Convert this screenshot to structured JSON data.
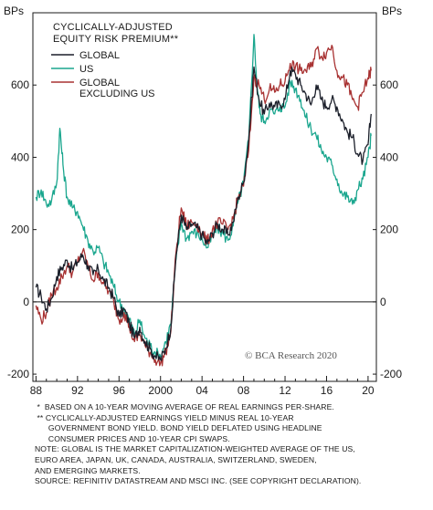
{
  "chart_data": {
    "type": "line",
    "title": "CYCLICALLY-ADJUSTED EQUITY RISK PREMIUM**",
    "title_lines": [
      "CYCLICALLY-ADJUSTED",
      "EQUITY RISK PREMIUM**"
    ],
    "ylabel_left": "BPs",
    "ylabel_right": "BPs",
    "ylim": [
      -220,
      800
    ],
    "yticks": [
      -200,
      0,
      200,
      400,
      600
    ],
    "ytick_labels": [
      "-200",
      "0",
      "200",
      "400",
      "600"
    ],
    "xlim": [
      1987.7,
      2020.8
    ],
    "xticks": [
      1988,
      1992,
      1996,
      2000,
      2004,
      2008,
      2012,
      2016,
      2020
    ],
    "xtick_labels": [
      "88",
      "92",
      "96",
      "2000",
      "04",
      "08",
      "12",
      "16",
      "20"
    ],
    "legend_placement": "top-left",
    "credit": "© BCA Research 2020",
    "series": [
      {
        "name": "GLOBAL",
        "color": "#1b1f2a",
        "x": [
          1988.0,
          1988.5,
          1989.0,
          1989.5,
          1990.0,
          1990.5,
          1991.0,
          1991.5,
          1992.0,
          1992.5,
          1993.0,
          1993.5,
          1994.0,
          1994.5,
          1995.0,
          1995.5,
          1996.0,
          1996.5,
          1997.0,
          1997.5,
          1998.0,
          1998.5,
          1999.0,
          1999.5,
          2000.0,
          2000.5,
          2001.0,
          2001.5,
          2002.0,
          2002.5,
          2003.0,
          2003.5,
          2004.0,
          2004.5,
          2005.0,
          2005.5,
          2006.0,
          2006.5,
          2007.0,
          2007.5,
          2008.0,
          2008.5,
          2009.0,
          2009.5,
          2010.0,
          2010.5,
          2011.0,
          2011.5,
          2012.0,
          2012.5,
          2013.0,
          2013.5,
          2014.0,
          2014.5,
          2015.0,
          2015.5,
          2016.0,
          2016.5,
          2017.0,
          2017.5,
          2018.0,
          2018.5,
          2019.0,
          2019.5,
          2020.0,
          2020.3
        ],
        "values": [
          40,
          15,
          -20,
          10,
          70,
          95,
          115,
          90,
          110,
          130,
          100,
          75,
          90,
          60,
          40,
          10,
          -40,
          -20,
          -60,
          -100,
          -70,
          -110,
          -130,
          -150,
          -160,
          -130,
          -70,
          130,
          240,
          200,
          215,
          205,
          185,
          160,
          190,
          215,
          200,
          185,
          220,
          290,
          330,
          450,
          650,
          560,
          520,
          550,
          540,
          545,
          560,
          640,
          630,
          600,
          575,
          545,
          600,
          560,
          540,
          560,
          540,
          505,
          470,
          455,
          410,
          390,
          435,
          520
        ]
      },
      {
        "name": "US",
        "color": "#1aa68e",
        "x": [
          1988.0,
          1988.5,
          1989.0,
          1989.5,
          1990.0,
          1990.3,
          1990.6,
          1991.0,
          1991.5,
          1992.0,
          1992.5,
          1993.0,
          1993.5,
          1994.0,
          1994.5,
          1995.0,
          1995.5,
          1996.0,
          1996.5,
          1997.0,
          1997.5,
          1998.0,
          1998.5,
          1999.0,
          1999.5,
          2000.0,
          2000.5,
          2001.0,
          2001.5,
          2002.0,
          2002.5,
          2003.0,
          2003.5,
          2004.0,
          2004.5,
          2005.0,
          2005.5,
          2006.0,
          2006.5,
          2007.0,
          2007.5,
          2008.0,
          2008.5,
          2009.0,
          2009.3,
          2009.6,
          2010.0,
          2010.5,
          2011.0,
          2011.5,
          2012.0,
          2012.5,
          2013.0,
          2013.5,
          2014.0,
          2014.5,
          2015.0,
          2015.5,
          2016.0,
          2016.5,
          2017.0,
          2017.5,
          2018.0,
          2018.5,
          2019.0,
          2019.5,
          2020.0,
          2020.3
        ],
        "values": [
          290,
          310,
          270,
          280,
          330,
          480,
          380,
          290,
          260,
          250,
          210,
          170,
          140,
          150,
          110,
          80,
          40,
          0,
          -20,
          -50,
          -90,
          -50,
          -100,
          -120,
          -140,
          -150,
          -110,
          -60,
          120,
          220,
          175,
          195,
          190,
          175,
          150,
          180,
          205,
          190,
          170,
          210,
          280,
          330,
          450,
          740,
          600,
          520,
          500,
          530,
          520,
          540,
          540,
          610,
          590,
          560,
          510,
          480,
          460,
          420,
          400,
          380,
          340,
          300,
          290,
          270,
          310,
          340,
          400,
          460
        ]
      },
      {
        "name": "GLOBAL EXCLUDING US",
        "color": "#a83232",
        "x": [
          1988.0,
          1988.5,
          1989.0,
          1989.5,
          1990.0,
          1990.5,
          1991.0,
          1991.5,
          1992.0,
          1992.5,
          1993.0,
          1993.5,
          1994.0,
          1994.5,
          1995.0,
          1995.5,
          1996.0,
          1996.5,
          1997.0,
          1997.5,
          1998.0,
          1998.5,
          1999.0,
          1999.5,
          2000.0,
          2000.5,
          2001.0,
          2001.5,
          2002.0,
          2002.5,
          2003.0,
          2003.5,
          2004.0,
          2004.5,
          2005.0,
          2005.5,
          2006.0,
          2006.5,
          2007.0,
          2007.5,
          2008.0,
          2008.5,
          2009.0,
          2009.5,
          2010.0,
          2010.5,
          2011.0,
          2011.5,
          2012.0,
          2012.5,
          2013.0,
          2013.5,
          2014.0,
          2014.5,
          2015.0,
          2015.5,
          2016.0,
          2016.5,
          2017.0,
          2017.5,
          2018.0,
          2018.5,
          2019.0,
          2019.5,
          2020.0,
          2020.3
        ],
        "values": [
          -10,
          -50,
          -30,
          20,
          40,
          70,
          100,
          80,
          110,
          140,
          100,
          60,
          80,
          50,
          30,
          0,
          -50,
          -30,
          -70,
          -110,
          -90,
          -120,
          -140,
          -160,
          -170,
          -140,
          -80,
          140,
          260,
          210,
          220,
          215,
          190,
          165,
          200,
          220,
          215,
          200,
          230,
          290,
          320,
          420,
          620,
          600,
          560,
          590,
          580,
          600,
          610,
          660,
          650,
          640,
          640,
          650,
          700,
          680,
          690,
          710,
          640,
          620,
          600,
          560,
          540,
          580,
          620,
          640
        ]
      }
    ]
  },
  "footnotes": [
    " *  BASED ON A 10-YEAR MOVING AVERAGE OF REAL EARNINGS PER-SHARE.",
    " ** CYCLICALLY-ADJUSTED EARNINGS YIELD MINUS REAL 10-YEAR",
    "      GOVERNMENT BOND YIELD. BOND YIELD DEFLATED USING HEADLINE",
    "      CONSUMER PRICES AND 10-YEAR CPI SWAPS.",
    "NOTE: GLOBAL IS THE MARKET CAPITALIZATION-WEIGHTED AVERAGE OF THE US,",
    "EURO AREA, JAPAN, UK, CANADA, AUSTRALIA, SWITZERLAND, SWEDEN,",
    "AND EMERGING MARKETS.",
    "SOURCE: REFINITIV DATASTREAM AND MSCI INC. (SEE COPYRIGHT DECLARATION)."
  ]
}
